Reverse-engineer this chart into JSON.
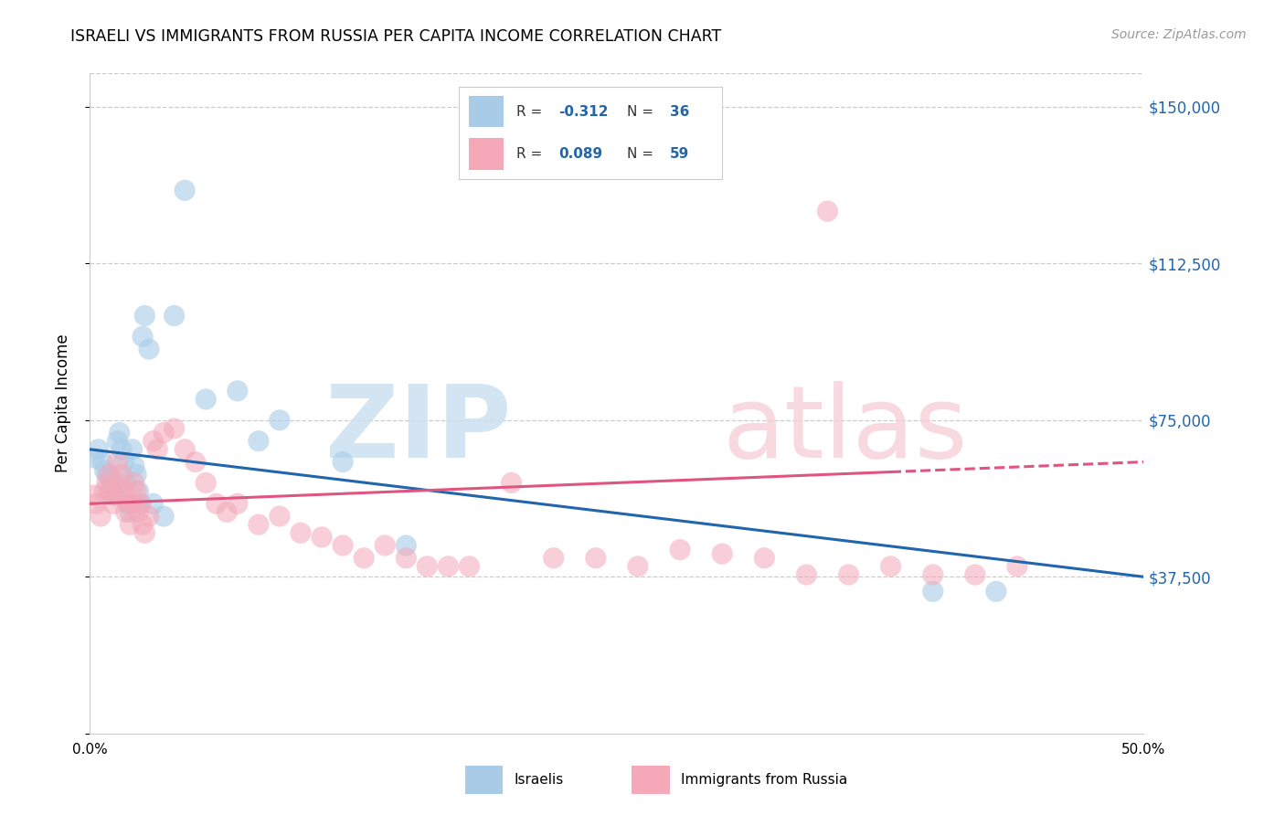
{
  "title": "ISRAELI VS IMMIGRANTS FROM RUSSIA PER CAPITA INCOME CORRELATION CHART",
  "source": "Source: ZipAtlas.com",
  "ylabel": "Per Capita Income",
  "yticks": [
    0,
    37500,
    75000,
    112500,
    150000
  ],
  "ytick_labels": [
    "",
    "$37,500",
    "$75,000",
    "$112,500",
    "$150,000"
  ],
  "xlim": [
    0.0,
    50.0
  ],
  "ylim": [
    18000,
    158000
  ],
  "label_blue": "Israelis",
  "label_pink": "Immigrants from Russia",
  "blue_scatter_color": "#a8cce8",
  "pink_scatter_color": "#f4a8b8",
  "blue_line_color": "#2166ac",
  "pink_line_color": "#e05580",
  "background_color": "#ffffff",
  "israelis_x": [
    0.2,
    0.4,
    0.6,
    0.7,
    0.8,
    0.9,
    1.0,
    1.1,
    1.2,
    1.3,
    1.4,
    1.5,
    1.6,
    1.7,
    1.8,
    1.9,
    2.0,
    2.1,
    2.2,
    2.3,
    2.4,
    2.5,
    2.6,
    2.8,
    3.0,
    3.5,
    4.0,
    4.5,
    5.5,
    7.0,
    8.0,
    9.0,
    12.0,
    15.0,
    40.0,
    43.0
  ],
  "israelis_y": [
    66000,
    68000,
    65000,
    63000,
    62000,
    58000,
    61000,
    60000,
    57000,
    70000,
    72000,
    68000,
    65000,
    60000,
    55000,
    53000,
    68000,
    64000,
    62000,
    58000,
    55000,
    95000,
    100000,
    92000,
    55000,
    52000,
    100000,
    130000,
    80000,
    82000,
    70000,
    75000,
    65000,
    45000,
    34000,
    34000
  ],
  "russia_x": [
    0.2,
    0.3,
    0.5,
    0.7,
    0.8,
    0.9,
    1.0,
    1.1,
    1.2,
    1.3,
    1.4,
    1.5,
    1.6,
    1.7,
    1.8,
    1.9,
    2.0,
    2.1,
    2.2,
    2.3,
    2.4,
    2.5,
    2.6,
    2.8,
    3.0,
    3.2,
    3.5,
    4.0,
    4.5,
    5.0,
    5.5,
    6.0,
    6.5,
    7.0,
    8.0,
    9.0,
    10.0,
    11.0,
    12.0,
    13.0,
    14.0,
    15.0,
    16.0,
    17.0,
    18.0,
    20.0,
    22.0,
    24.0,
    26.0,
    28.0,
    30.0,
    32.0,
    34.0,
    36.0,
    38.0,
    40.0,
    42.0,
    44.0,
    35.0
  ],
  "russia_y": [
    57000,
    55000,
    52000,
    58000,
    60000,
    62000,
    58000,
    55000,
    57000,
    65000,
    60000,
    62000,
    58000,
    53000,
    55000,
    50000,
    55000,
    60000,
    58000,
    53000,
    55000,
    50000,
    48000,
    52000,
    70000,
    68000,
    72000,
    73000,
    68000,
    65000,
    60000,
    55000,
    53000,
    55000,
    50000,
    52000,
    48000,
    47000,
    45000,
    42000,
    45000,
    42000,
    40000,
    40000,
    40000,
    60000,
    42000,
    42000,
    40000,
    44000,
    43000,
    42000,
    38000,
    38000,
    40000,
    38000,
    38000,
    40000,
    125000
  ]
}
